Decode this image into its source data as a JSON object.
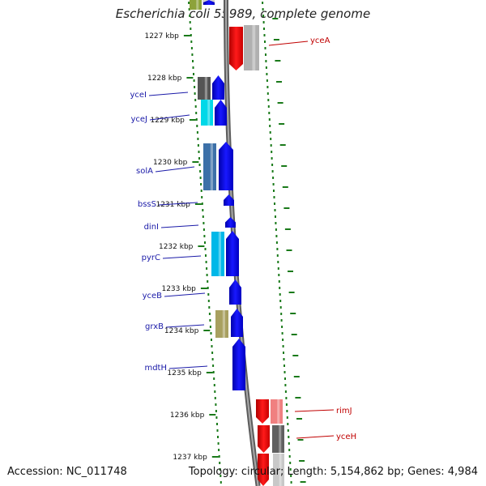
{
  "title": "Escherichia coli 55989, complete genome",
  "footer": {
    "accession": "Accession: NC_011748",
    "summary": "Topology: circular; Length: 5,154,862 bp; Genes: 4,984"
  },
  "colors": {
    "backbone": "#7a7a7a",
    "tick": "#1a7a1a",
    "label_blue": "#1a1aa8",
    "label_red": "#c00000",
    "forward_arrow": "#0000ee",
    "reverse_arrow": "#ee0000"
  },
  "kbp_ticks": [
    {
      "text": "1227 kbp",
      "kbp": 1227
    },
    {
      "text": "1228 kbp",
      "kbp": 1228
    },
    {
      "text": "1229 kbp",
      "kbp": 1229
    },
    {
      "text": "1230 kbp",
      "kbp": 1230
    },
    {
      "text": "1231 kbp",
      "kbp": 1231
    },
    {
      "text": "1232 kbp",
      "kbp": 1232
    },
    {
      "text": "1233 kbp",
      "kbp": 1233
    },
    {
      "text": "1234 kbp",
      "kbp": 1234
    },
    {
      "text": "1235 kbp",
      "kbp": 1235
    },
    {
      "text": "1236 kbp",
      "kbp": 1236
    },
    {
      "text": "1237 kbp",
      "kbp": 1237
    }
  ],
  "genes": [
    {
      "name": "yceI",
      "strand": "forward"
    },
    {
      "name": "yceJ",
      "strand": "forward"
    },
    {
      "name": "solA",
      "strand": "forward"
    },
    {
      "name": "bssS",
      "strand": "forward"
    },
    {
      "name": "dinI",
      "strand": "forward"
    },
    {
      "name": "pyrC",
      "strand": "forward"
    },
    {
      "name": "yceB",
      "strand": "forward"
    },
    {
      "name": "grxB",
      "strand": "forward"
    },
    {
      "name": "mdtH",
      "strand": "forward"
    },
    {
      "name": "yceA",
      "strand": "reverse"
    },
    {
      "name": "rimJ",
      "strand": "reverse"
    },
    {
      "name": "yceH",
      "strand": "reverse"
    }
  ]
}
